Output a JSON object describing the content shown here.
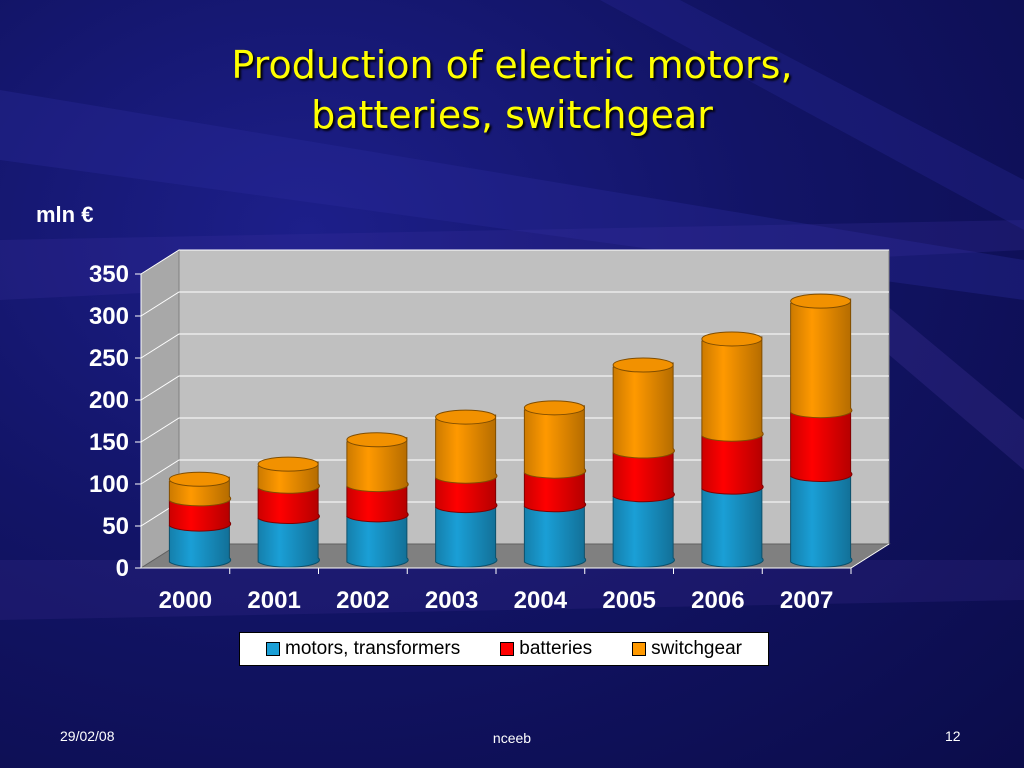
{
  "slide": {
    "title_line1": "Production of electric motors,",
    "title_line2": "batteries, switchgear",
    "unit_label": "mln €"
  },
  "footer": {
    "date": "29/02/08",
    "center": "nceeb",
    "page": "12"
  },
  "chart_data": {
    "type": "bar",
    "stacked": true,
    "three_d": true,
    "categories": [
      "2000",
      "2001",
      "2002",
      "2003",
      "2004",
      "2005",
      "2006",
      "2007"
    ],
    "series": [
      {
        "name": "motors, transformers",
        "color": "#1a9fd6",
        "values": [
          43,
          52,
          54,
          65,
          66,
          78,
          87,
          102
        ]
      },
      {
        "name": "batteries",
        "color": "#ff0000",
        "values": [
          30,
          36,
          36,
          35,
          40,
          52,
          63,
          76
        ]
      },
      {
        "name": "switchgear",
        "color": "#ff9900",
        "values": [
          23,
          26,
          53,
          70,
          75,
          102,
          113,
          130
        ]
      }
    ],
    "ylim": [
      0,
      350
    ],
    "yticks": [
      "0",
      "50",
      "100",
      "150",
      "200",
      "250",
      "300",
      "350"
    ],
    "grid": true,
    "legend_position": "bottom"
  }
}
